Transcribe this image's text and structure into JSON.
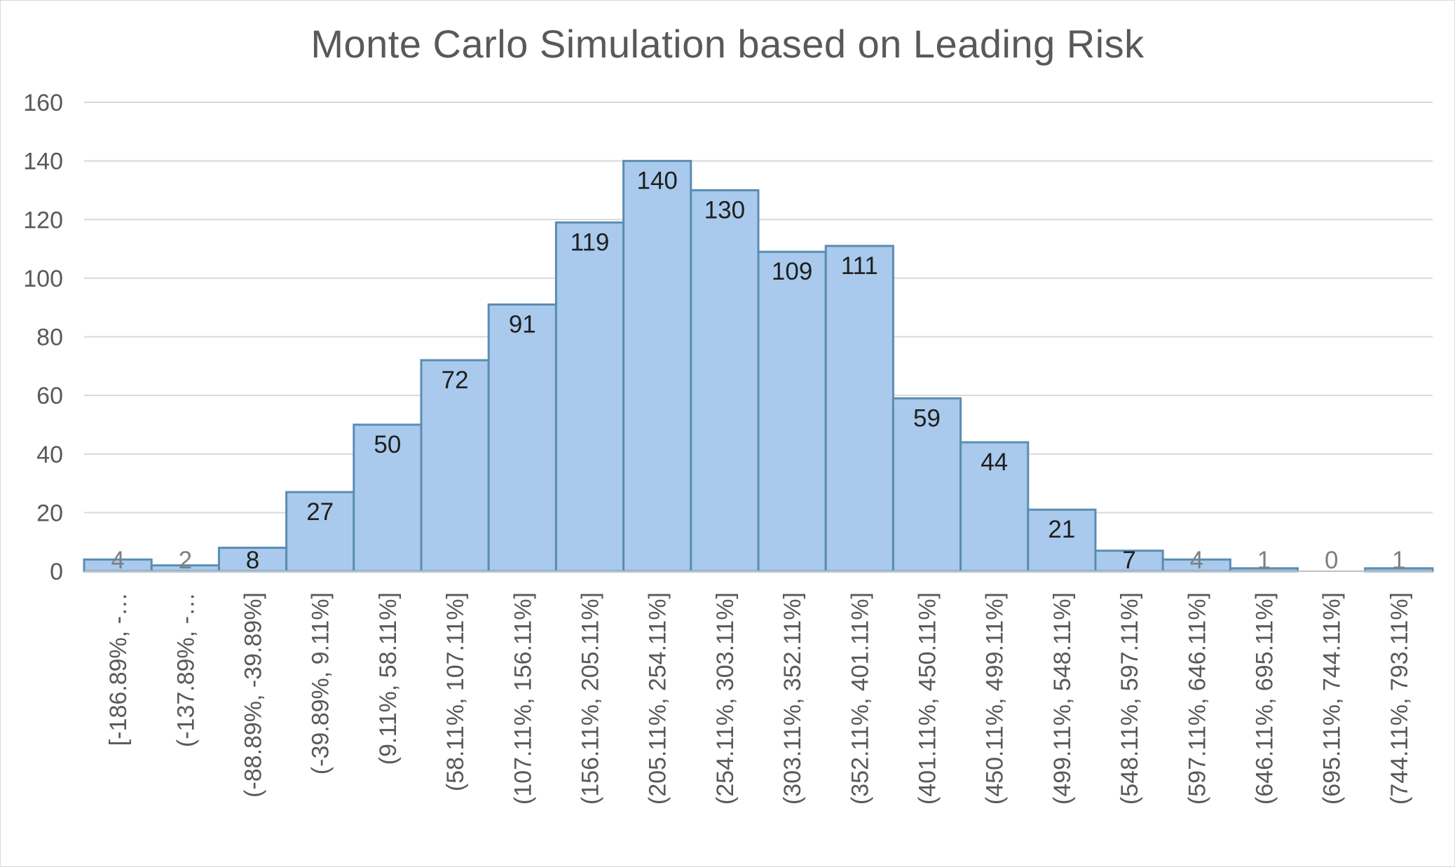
{
  "chart_data": {
    "type": "bar",
    "title": "Monte Carlo Simulation based on Leading Risk",
    "xlabel": "",
    "ylabel": "",
    "ylim": [
      0,
      160
    ],
    "yticks": [
      0,
      20,
      40,
      60,
      80,
      100,
      120,
      140,
      160
    ],
    "grid": true,
    "legend": "none",
    "bar_fill_color": "#a9caec",
    "bar_edge_color": "#5b8db1",
    "categories": [
      "[-186.89%, -…",
      "(-137.89%, -…",
      "(-88.89%, -39.89%]",
      "(-39.89%, 9.11%]",
      "(9.11%, 58.11%]",
      "(58.11%, 107.11%]",
      "(107.11%, 156.11%]",
      "(156.11%, 205.11%]",
      "(205.11%, 254.11%]",
      "(254.11%, 303.11%]",
      "(303.11%, 352.11%]",
      "(352.11%, 401.11%]",
      "(401.11%, 450.11%]",
      "(450.11%, 499.11%]",
      "(499.11%, 548.11%]",
      "(548.11%, 597.11%]",
      "(597.11%, 646.11%]",
      "(646.11%, 695.11%]",
      "(695.11%, 744.11%]",
      "(744.11%, 793.11%]"
    ],
    "values": [
      4,
      2,
      8,
      27,
      50,
      72,
      91,
      119,
      140,
      130,
      109,
      111,
      59,
      44,
      21,
      7,
      4,
      1,
      0,
      1
    ],
    "data_labels": [
      "4",
      "2",
      "8",
      "27",
      "50",
      "72",
      "91",
      "119",
      "140",
      "130",
      "109",
      "111",
      "59",
      "44",
      "21",
      "7",
      "4",
      "1",
      "0",
      "1"
    ]
  }
}
